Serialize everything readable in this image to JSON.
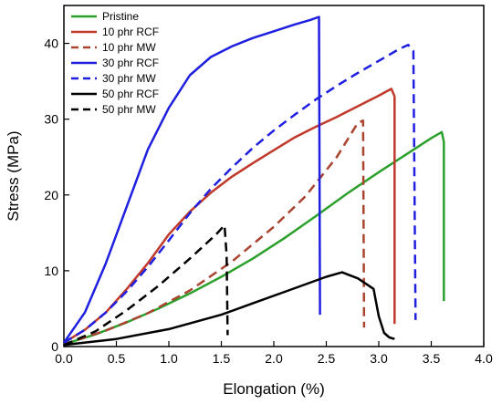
{
  "chart_data": {
    "type": "line",
    "xlabel": "Elongation (%)",
    "ylabel": "Stress (MPa)",
    "xlim": [
      0,
      4
    ],
    "ylim": [
      0,
      45
    ],
    "xticks": [
      "0.0",
      "0.5",
      "1.0",
      "1.5",
      "2.0",
      "2.5",
      "3.0",
      "3.5",
      "4.0"
    ],
    "yticks": [
      "0",
      "10",
      "20",
      "30",
      "40"
    ],
    "grid": false,
    "legend_position": "top-left",
    "series": [
      {
        "name": "Pristine",
        "color": "#2ca02c",
        "dash": "solid",
        "width": 2.5,
        "x": [
          0,
          0.3,
          0.6,
          0.9,
          1.2,
          1.5,
          1.8,
          2.1,
          2.4,
          2.7,
          3.0,
          3.3,
          3.5,
          3.6,
          3.62,
          3.62
        ],
        "y": [
          0.3,
          1.6,
          3.2,
          5.0,
          7.0,
          9.2,
          11.6,
          14.3,
          17.2,
          20.2,
          23.0,
          25.7,
          27.5,
          28.3,
          27.0,
          6.0
        ]
      },
      {
        "name": "10 phr RCF",
        "color": "#c0392b",
        "dash": "solid",
        "width": 2.5,
        "x": [
          0,
          0.2,
          0.4,
          0.6,
          0.8,
          1.0,
          1.2,
          1.4,
          1.6,
          1.8,
          2.0,
          2.2,
          2.4,
          2.6,
          2.8,
          3.0,
          3.12,
          3.15,
          3.15
        ],
        "y": [
          0.5,
          2.2,
          4.5,
          7.6,
          11.0,
          14.8,
          17.8,
          20.3,
          22.4,
          24.2,
          25.9,
          27.6,
          29.0,
          30.3,
          31.7,
          33.1,
          34.0,
          33.0,
          3.0
        ]
      },
      {
        "name": "10 phr MW",
        "color": "#a94430",
        "dash": "dash",
        "width": 2.5,
        "x": [
          0,
          0.4,
          0.8,
          1.2,
          1.6,
          2.0,
          2.3,
          2.6,
          2.8,
          2.85,
          2.86
        ],
        "y": [
          0.3,
          2.1,
          4.4,
          7.4,
          11.2,
          15.8,
          19.8,
          25.0,
          29.5,
          29.8,
          2.5
        ]
      },
      {
        "name": "30 phr RCF",
        "color": "#1f1fe0",
        "dash": "solid",
        "width": 2.5,
        "x": [
          0,
          0.2,
          0.4,
          0.6,
          0.8,
          1.0,
          1.2,
          1.4,
          1.6,
          1.8,
          2.0,
          2.2,
          2.35,
          2.43,
          2.44
        ],
        "y": [
          0.5,
          4.5,
          11.0,
          18.5,
          26.0,
          31.5,
          35.8,
          38.2,
          39.6,
          40.7,
          41.6,
          42.5,
          43.1,
          43.5,
          4.2
        ]
      },
      {
        "name": "30 phr MW",
        "color": "#1f1fe0",
        "dash": "dash",
        "width": 2.5,
        "x": [
          0,
          0.2,
          0.4,
          0.6,
          0.8,
          1.0,
          1.2,
          1.4,
          1.6,
          1.8,
          2.0,
          2.2,
          2.4,
          2.6,
          2.8,
          3.0,
          3.2,
          3.28,
          3.33,
          3.35
        ],
        "y": [
          0.5,
          2.2,
          4.5,
          7.3,
          10.5,
          14.0,
          17.6,
          20.8,
          23.6,
          26.2,
          28.5,
          30.6,
          32.6,
          34.4,
          36.1,
          37.7,
          39.3,
          39.8,
          39.0,
          3.5
        ]
      },
      {
        "name": "50 phr RCF",
        "color": "#000000",
        "dash": "solid",
        "width": 2.5,
        "x": [
          0,
          0.5,
          1.0,
          1.5,
          1.8,
          2.2,
          2.5,
          2.65,
          2.8,
          2.95,
          3.0,
          3.05,
          3.1,
          3.15
        ],
        "y": [
          0.2,
          1.0,
          2.3,
          4.2,
          5.7,
          7.7,
          9.2,
          9.8,
          9.0,
          7.6,
          4.0,
          1.8,
          1.2,
          1.0
        ]
      },
      {
        "name": "50 phr MW",
        "color": "#000000",
        "dash": "dash",
        "width": 2.5,
        "x": [
          0,
          0.3,
          0.6,
          0.9,
          1.2,
          1.45,
          1.53,
          1.55,
          1.56
        ],
        "y": [
          0.2,
          2.0,
          4.8,
          8.0,
          11.6,
          14.8,
          16.0,
          12.0,
          1.5
        ]
      }
    ]
  }
}
